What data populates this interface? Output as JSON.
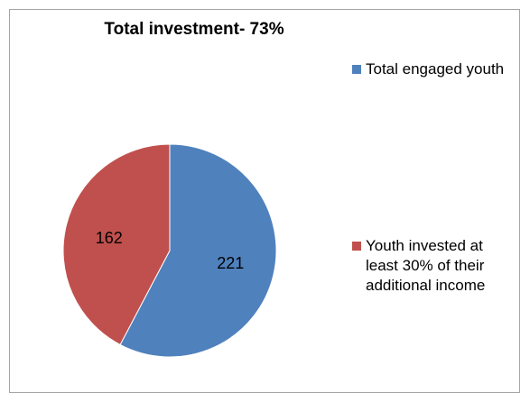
{
  "chart_data": {
    "type": "pie",
    "title": "Total investment- 73%",
    "categories": [
      "Total engaged youth",
      "Youth invested at least 30% of their additional income"
    ],
    "values": [
      221,
      162
    ],
    "colors": [
      "#4f81bd",
      "#c0504d"
    ],
    "data_labels": [
      "221",
      "162"
    ],
    "legend_position": "right"
  }
}
